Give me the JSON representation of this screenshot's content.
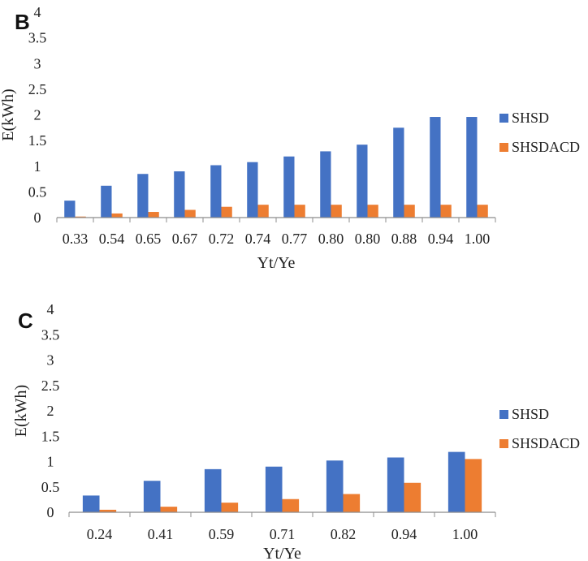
{
  "colors": {
    "series_a": "#4472C4",
    "series_b": "#ED7D31",
    "axis": "#8c8c8c"
  },
  "chart_data": [
    {
      "type": "bar",
      "panel_label": "B",
      "categories": [
        "0.33",
        "0.54",
        "0.65",
        "0.67",
        "0.72",
        "0.74",
        "0.77",
        "0.80",
        "0.80",
        "0.88",
        "0.94",
        "1.00"
      ],
      "series": [
        {
          "name": "SHSD",
          "values": [
            0.33,
            0.62,
            0.85,
            0.9,
            1.02,
            1.08,
            1.19,
            1.29,
            1.42,
            1.75,
            1.96,
            1.96
          ]
        },
        {
          "name": "SHSDACD",
          "values": [
            0.02,
            0.08,
            0.11,
            0.15,
            0.21,
            0.25,
            0.25,
            0.25,
            0.25,
            0.25,
            0.25,
            0.25
          ]
        }
      ],
      "xlabel": "Yt/Ye",
      "ylabel": "E(kWh)",
      "ylim": [
        0,
        4
      ],
      "yticks": [
        "0",
        "0.5",
        "1",
        "1.5",
        "2",
        "2.5",
        "3",
        "3.5",
        "4"
      ],
      "legend_position": "right"
    },
    {
      "type": "bar",
      "panel_label": "C",
      "categories": [
        "0.24",
        "0.41",
        "0.59",
        "0.71",
        "0.82",
        "0.94",
        "1.00"
      ],
      "series": [
        {
          "name": "SHSD",
          "values": [
            0.33,
            0.62,
            0.85,
            0.9,
            1.02,
            1.08,
            1.19
          ]
        },
        {
          "name": "SHSDACD",
          "values": [
            0.05,
            0.11,
            0.19,
            0.26,
            0.36,
            0.58,
            1.05
          ]
        }
      ],
      "xlabel": "Yt/Ye",
      "ylabel": "E(kWh)",
      "ylim": [
        0,
        4
      ],
      "yticks": [
        "0",
        "0.5",
        "1",
        "1.5",
        "2",
        "2.5",
        "3",
        "3.5",
        "4"
      ],
      "legend_position": "right"
    }
  ]
}
